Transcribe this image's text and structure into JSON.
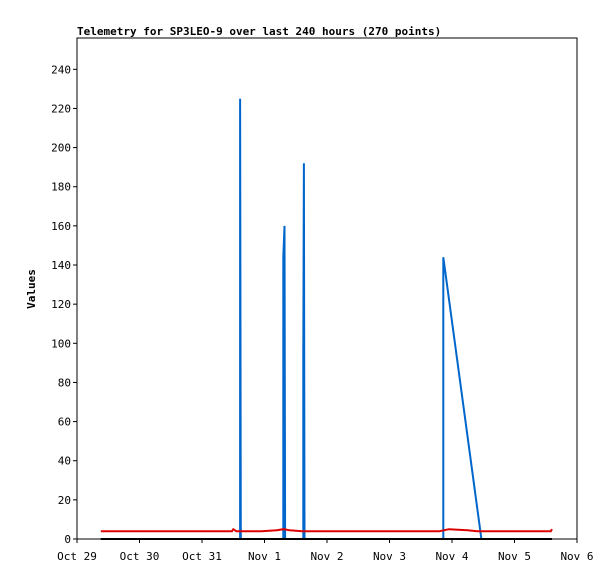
{
  "chart_data": {
    "type": "line",
    "title": "Telemetry for SP3LEO-9 over last 240 hours (270 points)",
    "xlabel": "",
    "ylabel": "Values",
    "ylim": [
      0,
      256
    ],
    "x_ticks": [
      "Oct 29",
      "Oct 30",
      "Oct 31",
      "Nov 1",
      "Nov 2",
      "Nov 3",
      "Nov 4",
      "Nov 5",
      "Nov 6"
    ],
    "y_ticks": [
      0,
      20,
      40,
      60,
      80,
      100,
      120,
      140,
      160,
      180,
      200,
      220,
      240
    ],
    "grid": false,
    "legend": "none",
    "colors": {
      "blue": "#0066cc",
      "red": "#dd0000",
      "black": "#000000"
    },
    "series": [
      {
        "color": "#0066cc",
        "points": [
          [
            0.38,
            0
          ],
          [
            2.61,
            0
          ],
          [
            2.61,
            225
          ],
          [
            2.62,
            0
          ],
          [
            3.3,
            0
          ],
          [
            3.3,
            144
          ],
          [
            3.32,
            160
          ],
          [
            3.33,
            0
          ],
          [
            3.62,
            0
          ],
          [
            3.62,
            96
          ],
          [
            3.63,
            192
          ],
          [
            3.64,
            0
          ],
          [
            5.86,
            0
          ],
          [
            5.86,
            144
          ],
          [
            6.47,
            0
          ],
          [
            7.6,
            0
          ]
        ]
      },
      {
        "color": "#dd0000",
        "points": [
          [
            0.38,
            4
          ],
          [
            2.48,
            4
          ],
          [
            2.5,
            5
          ],
          [
            2.55,
            4
          ],
          [
            2.95,
            4
          ],
          [
            3.2,
            4.5
          ],
          [
            3.3,
            5
          ],
          [
            3.4,
            4.5
          ],
          [
            3.6,
            4
          ],
          [
            5.8,
            4
          ],
          [
            5.95,
            5
          ],
          [
            6.25,
            4.5
          ],
          [
            6.4,
            4
          ],
          [
            7.58,
            4
          ],
          [
            7.6,
            5
          ]
        ]
      },
      {
        "color": "#000000",
        "points": [
          [
            0.38,
            0
          ],
          [
            7.6,
            0
          ]
        ]
      }
    ]
  }
}
